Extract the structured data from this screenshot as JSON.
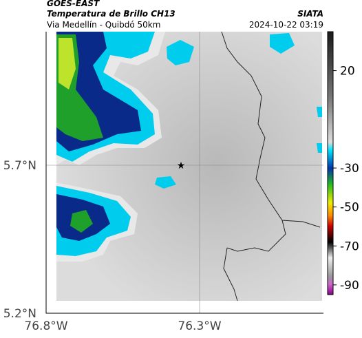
{
  "header": {
    "satellite": "GOES-EAST",
    "product": "Temperatura de Brillo CH13",
    "region": "Via Medellín - Quibdó 50km",
    "source": "SIATA",
    "timestamp": "2024-10-22 03:19"
  },
  "map": {
    "lat_labels": [
      "5.7°N",
      "5.2°N"
    ],
    "lon_labels": [
      "76.8°W",
      "76.3°W"
    ]
  },
  "colorbar": {
    "lim": [
      -95,
      40
    ],
    "ticks": [
      20,
      -30,
      -50,
      -70,
      -90
    ]
  }
}
